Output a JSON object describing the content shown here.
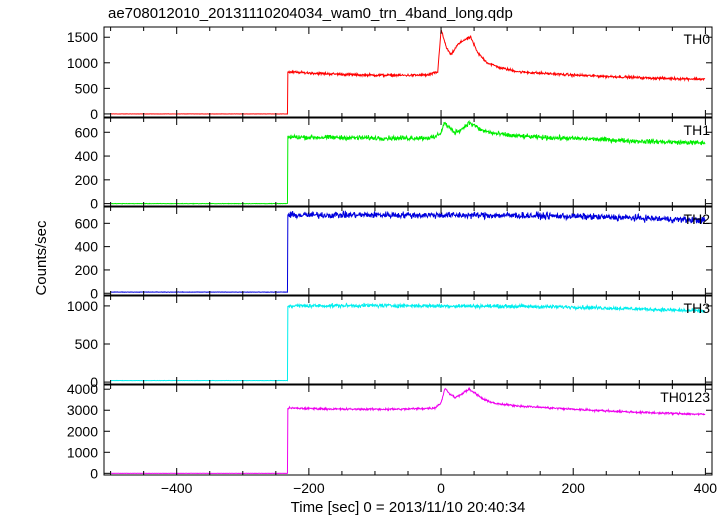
{
  "chart_data": {
    "type": "line",
    "title": "ae708012010_20131110204034_wam0_trn_4band_long.qdp",
    "xlabel": "Time [sec] 0 = 2013/11/10 20:40:34",
    "ylabel": "Counts/sec",
    "xlim": [
      -510,
      410
    ],
    "x_ticks": [
      -400,
      -200,
      0,
      200,
      400
    ],
    "x_tick_labels": [
      "−400",
      "−200",
      "0",
      "200",
      "400"
    ],
    "grid": false,
    "panels": [
      {
        "name": "TH0",
        "color": "#ff0000",
        "ylim": [
          -60,
          1700
        ],
        "y_ticks": [
          0,
          500,
          1000,
          1500
        ],
        "pre_level": 0,
        "step_time": -232,
        "step_level": 820,
        "x": [
          -232,
          -180,
          -120,
          -60,
          -20,
          -5,
          0,
          8,
          15,
          25,
          35,
          45,
          55,
          70,
          90,
          120,
          160,
          200,
          260,
          320,
          400
        ],
        "values": [
          820,
          790,
          760,
          755,
          760,
          820,
          1650,
          1300,
          1150,
          1350,
          1450,
          1500,
          1200,
          1000,
          900,
          820,
          790,
          760,
          730,
          700,
          680
        ],
        "noise": 35
      },
      {
        "name": "TH1",
        "color": "#00ee00",
        "ylim": [
          -20,
          720
        ],
        "y_ticks": [
          0,
          200,
          400,
          600
        ],
        "pre_level": 0,
        "step_time": -232,
        "step_level": 560,
        "x": [
          -232,
          -150,
          -60,
          -10,
          0,
          5,
          12,
          20,
          30,
          42,
          50,
          60,
          80,
          110,
          160,
          220,
          300,
          400
        ],
        "values": [
          560,
          555,
          550,
          555,
          600,
          680,
          640,
          600,
          620,
          680,
          660,
          620,
          590,
          570,
          555,
          545,
          525,
          510
        ],
        "noise": 28
      },
      {
        "name": "TH2",
        "color": "#0000dd",
        "ylim": [
          -15,
          740
        ],
        "y_ticks": [
          0,
          200,
          400,
          600
        ],
        "pre_level": 10,
        "step_time": -232,
        "step_level": 670,
        "x": [
          -232,
          -100,
          0,
          100,
          200,
          300,
          400
        ],
        "values": [
          670,
          672,
          670,
          668,
          660,
          645,
          625
        ],
        "noise": 40
      },
      {
        "name": "TH3",
        "color": "#00eeee",
        "ylim": [
          -25,
          1130
        ],
        "y_ticks": [
          0,
          500,
          1000
        ],
        "pre_level": 20,
        "step_time": -232,
        "step_level": 1000,
        "x": [
          -232,
          -100,
          0,
          100,
          200,
          300,
          400
        ],
        "values": [
          1000,
          1005,
          1000,
          995,
          985,
          960,
          930
        ],
        "noise": 35
      },
      {
        "name": "TH0123",
        "color": "#ee00ee",
        "ylim": [
          -80,
          4200
        ],
        "y_ticks": [
          0,
          1000,
          2000,
          3000,
          4000
        ],
        "pre_level": 0,
        "step_time": -232,
        "step_level": 3100,
        "x": [
          -232,
          -150,
          -60,
          -10,
          0,
          6,
          14,
          22,
          32,
          42,
          52,
          65,
          85,
          120,
          170,
          230,
          300,
          400
        ],
        "values": [
          3100,
          3050,
          3050,
          3100,
          3350,
          4050,
          3750,
          3600,
          3800,
          4000,
          3800,
          3500,
          3300,
          3200,
          3100,
          3000,
          2900,
          2800
        ],
        "noise": 70
      }
    ]
  }
}
